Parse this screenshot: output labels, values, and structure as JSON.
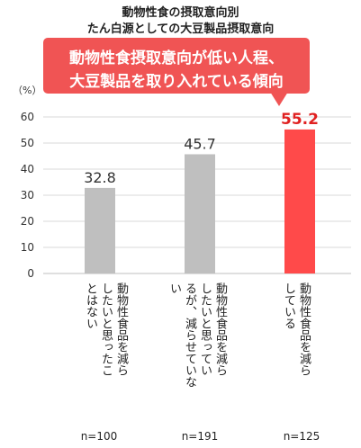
{
  "chart_data": {
    "type": "bar",
    "title": "動物性食の摂取意向別",
    "subtitle": "たん白源としての大豆製品摂取意向",
    "ylabel": "（%）",
    "ylim": [
      0,
      60
    ],
    "yticks": [
      0,
      10,
      20,
      30,
      40,
      50,
      60
    ],
    "grid": true,
    "categories": [
      "動物性食品を減らしたいと思ったことはない",
      "動物性食品を減らしたいと思っているが、減らせていない",
      "動物性食品を減らしている"
    ],
    "category_lines": [
      [
        "動物性食品を減ら",
        "したいと思ったこ",
        "とはない"
      ],
      [
        "動物性食品を減ら",
        "したいと思ってい",
        "るが、減らせていな",
        "い"
      ],
      [
        "動物性食品を減ら",
        "している"
      ]
    ],
    "values": [
      32.8,
      45.7,
      55.2
    ],
    "value_labels": [
      "32.8",
      "45.7",
      "55.2"
    ],
    "sample_sizes": [
      "n=100",
      "n=191",
      "n=125"
    ],
    "bar_colors": [
      "#bfbfbf",
      "#bfbfbf",
      "#ff4a4a"
    ],
    "highlight_label_color": "#e02020",
    "annotation": [
      "動物性食摂取意向が低い人程、",
      "大豆製品を取り入れている傾向"
    ]
  },
  "colors": {
    "callout": "#f05454",
    "grid": "#d9d9d9",
    "axis": "#bfbfbf"
  }
}
